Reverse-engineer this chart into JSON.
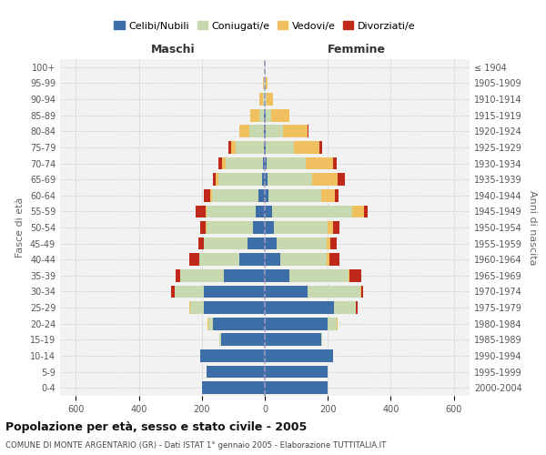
{
  "age_groups": [
    "0-4",
    "5-9",
    "10-14",
    "15-19",
    "20-24",
    "25-29",
    "30-34",
    "35-39",
    "40-44",
    "45-49",
    "50-54",
    "55-59",
    "60-64",
    "65-69",
    "70-74",
    "75-79",
    "80-84",
    "85-89",
    "90-94",
    "95-99",
    "100+"
  ],
  "birth_years": [
    "2000-2004",
    "1995-1999",
    "1990-1994",
    "1985-1989",
    "1980-1984",
    "1975-1979",
    "1970-1974",
    "1965-1969",
    "1960-1964",
    "1955-1959",
    "1950-1954",
    "1945-1949",
    "1940-1944",
    "1935-1939",
    "1930-1934",
    "1925-1929",
    "1920-1924",
    "1915-1919",
    "1910-1914",
    "1905-1909",
    "≤ 1904"
  ],
  "maschi": {
    "celibi": [
      200,
      185,
      205,
      140,
      165,
      195,
      195,
      130,
      80,
      55,
      38,
      28,
      20,
      10,
      5,
      3,
      2,
      2,
      0,
      0,
      0
    ],
    "coniugati": [
      0,
      0,
      0,
      5,
      15,
      42,
      90,
      138,
      128,
      138,
      148,
      158,
      148,
      138,
      120,
      90,
      48,
      15,
      5,
      2,
      0
    ],
    "vedovi": [
      0,
      0,
      0,
      0,
      2,
      2,
      2,
      1,
      1,
      1,
      2,
      3,
      5,
      8,
      12,
      14,
      32,
      28,
      12,
      5,
      0
    ],
    "divorziati": [
      0,
      0,
      0,
      0,
      0,
      2,
      12,
      15,
      32,
      18,
      18,
      30,
      22,
      10,
      10,
      8,
      0,
      0,
      0,
      0,
      0
    ]
  },
  "femmine": {
    "nubili": [
      200,
      198,
      218,
      178,
      200,
      220,
      135,
      78,
      48,
      38,
      30,
      22,
      12,
      8,
      5,
      3,
      2,
      2,
      0,
      0,
      0
    ],
    "coniugate": [
      0,
      0,
      0,
      5,
      28,
      68,
      168,
      188,
      148,
      158,
      168,
      255,
      168,
      142,
      125,
      88,
      55,
      18,
      5,
      2,
      0
    ],
    "vedove": [
      0,
      0,
      0,
      0,
      2,
      2,
      2,
      3,
      8,
      12,
      18,
      38,
      42,
      82,
      88,
      82,
      78,
      58,
      22,
      8,
      0
    ],
    "divorziate": [
      0,
      0,
      0,
      0,
      2,
      5,
      8,
      38,
      32,
      20,
      20,
      12,
      12,
      22,
      10,
      8,
      5,
      0,
      0,
      0,
      0
    ]
  },
  "colors": {
    "celibi": "#3d6ea8",
    "coniugati": "#c8d9b0",
    "vedovi": "#f0c060",
    "divorziati": "#c0281a"
  },
  "xlim": 650,
  "title": "Popolazione per età, sesso e stato civile - 2005",
  "subtitle": "COMUNE DI MONTE ARGENTARIO (GR) - Dati ISTAT 1° gennaio 2005 - Elaborazione TUTTITALIA.IT",
  "ylabel_left": "Fasce di età",
  "ylabel_right": "Anni di nascita",
  "xlabel_maschi": "Maschi",
  "xlabel_femmine": "Femmine",
  "bg_color": "#f2f2f2",
  "grid_color": "#cccccc"
}
